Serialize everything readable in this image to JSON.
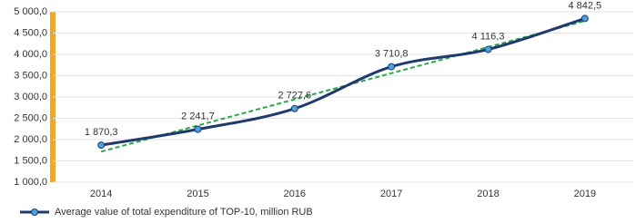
{
  "chart_data": {
    "type": "line",
    "categories": [
      "2014",
      "2015",
      "2016",
      "2017",
      "2018",
      "2019"
    ],
    "series": [
      {
        "name": "Average value of total expenditure of TOP-10, million RUB",
        "color": "#1f3a6e",
        "values": [
          1870.3,
          2241.7,
          2727.6,
          3710.8,
          4116.3,
          4842.5
        ],
        "value_labels": [
          "1 870,3",
          "2 241,7",
          "2 727,6",
          "3 710,8",
          "4 116,3",
          "4 842,5"
        ]
      }
    ],
    "marker_color": "#4aa3df",
    "trendline": true,
    "trendline_color": "#2aa84a",
    "ylim": [
      1000,
      5000
    ],
    "yticks": [
      {
        "value": 1000,
        "label": "1 000,0"
      },
      {
        "value": 1500,
        "label": "1 500,0"
      },
      {
        "value": 2000,
        "label": "2 000,0"
      },
      {
        "value": 2500,
        "label": "2 500,0"
      },
      {
        "value": 3000,
        "label": "3 000,0"
      },
      {
        "value": 3500,
        "label": "3 500,0"
      },
      {
        "value": 4000,
        "label": "4 000,0"
      },
      {
        "value": 4500,
        "label": "4 500,0"
      },
      {
        "value": 5000,
        "label": "5 000,0"
      }
    ],
    "grid": true,
    "legend": "bottom"
  }
}
